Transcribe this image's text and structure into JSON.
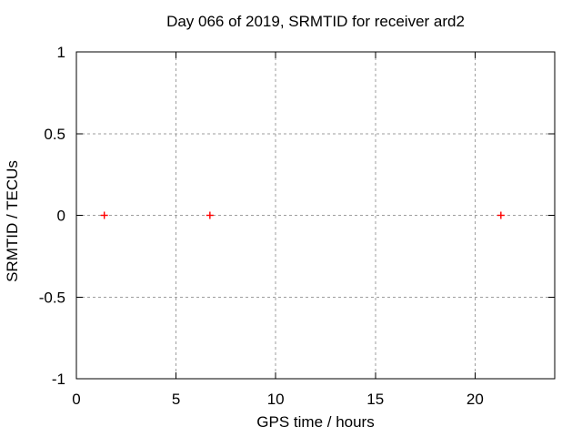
{
  "chart_data": {
    "type": "scatter",
    "title": "Day 066 of 2019, SRMTID for receiver ard2",
    "xlabel": "GPS time / hours",
    "ylabel": "SRMTID / TECUs",
    "series": [
      {
        "name": "SRMTID",
        "x": [
          1.4,
          6.7,
          21.3
        ],
        "y": [
          0,
          0,
          0
        ]
      }
    ],
    "xlim": [
      0,
      24
    ],
    "ylim": [
      -1,
      1
    ],
    "xticks": [
      0,
      5,
      10,
      15,
      20
    ],
    "xtick_labels": [
      "0",
      "5",
      "10",
      "15",
      "20"
    ],
    "yticks": [
      -1,
      -0.5,
      0,
      0.5,
      1
    ],
    "ytick_labels": [
      "-1",
      "-0.5",
      "0",
      "0.5",
      "1"
    ],
    "grid": true,
    "legend": false,
    "marker": "plus",
    "colors": {
      "marker": "#ff0000",
      "grid": "#9e9e9e",
      "border": "#000000",
      "text": "#000000",
      "background": "#ffffff"
    }
  }
}
